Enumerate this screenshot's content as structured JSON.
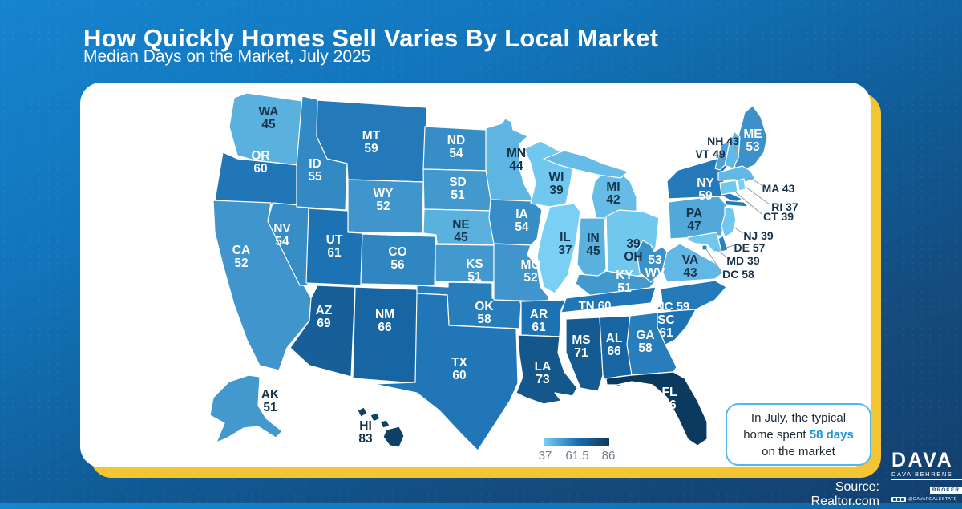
{
  "header": {
    "title": "How Quickly Homes Sell Varies By Local Market",
    "subtitle": "Median Days on the Market, July 2025"
  },
  "chart_data": {
    "type": "heatmap",
    "subtype": "us-choropleth-map",
    "title": "How Quickly Homes Sell Varies By Local Market",
    "subtitle": "Median Days on the Market, July 2025",
    "unit": "median days on market",
    "legend_position": "bottom-center",
    "color_domain": [
      37,
      61.5,
      86
    ],
    "states": [
      {
        "abbr": "WA",
        "value": 45
      },
      {
        "abbr": "OR",
        "value": 60
      },
      {
        "abbr": "CA",
        "value": 52
      },
      {
        "abbr": "NV",
        "value": 54
      },
      {
        "abbr": "ID",
        "value": 55
      },
      {
        "abbr": "MT",
        "value": 59
      },
      {
        "abbr": "WY",
        "value": 52
      },
      {
        "abbr": "UT",
        "value": 61
      },
      {
        "abbr": "AZ",
        "value": 69
      },
      {
        "abbr": "CO",
        "value": 56
      },
      {
        "abbr": "NM",
        "value": 66
      },
      {
        "abbr": "ND",
        "value": 54
      },
      {
        "abbr": "SD",
        "value": 51
      },
      {
        "abbr": "NE",
        "value": 45
      },
      {
        "abbr": "KS",
        "value": 51
      },
      {
        "abbr": "OK",
        "value": 58
      },
      {
        "abbr": "TX",
        "value": 60
      },
      {
        "abbr": "MN",
        "value": 44
      },
      {
        "abbr": "IA",
        "value": 54
      },
      {
        "abbr": "MO",
        "value": 52
      },
      {
        "abbr": "AR",
        "value": 61
      },
      {
        "abbr": "LA",
        "value": 73
      },
      {
        "abbr": "WI",
        "value": 39
      },
      {
        "abbr": "IL",
        "value": 37
      },
      {
        "abbr": "MS",
        "value": 71
      },
      {
        "abbr": "MI",
        "value": 42
      },
      {
        "abbr": "IN",
        "value": 45
      },
      {
        "abbr": "OH",
        "value": 39
      },
      {
        "abbr": "KY",
        "value": 51
      },
      {
        "abbr": "TN",
        "value": 60
      },
      {
        "abbr": "AL",
        "value": 66
      },
      {
        "abbr": "GA",
        "value": 58
      },
      {
        "abbr": "WV",
        "value": 53
      },
      {
        "abbr": "VA",
        "value": 43
      },
      {
        "abbr": "PA",
        "value": 47
      },
      {
        "abbr": "NY",
        "value": 59
      },
      {
        "abbr": "ME",
        "value": 53
      },
      {
        "abbr": "NH",
        "value": 43
      },
      {
        "abbr": "VT",
        "value": 49
      },
      {
        "abbr": "MA",
        "value": 43
      },
      {
        "abbr": "RI",
        "value": 37
      },
      {
        "abbr": "CT",
        "value": 39
      },
      {
        "abbr": "NJ",
        "value": 39
      },
      {
        "abbr": "DE",
        "value": 57
      },
      {
        "abbr": "MD",
        "value": 39
      },
      {
        "abbr": "DC",
        "value": 58
      },
      {
        "abbr": "NC",
        "value": 59
      },
      {
        "abbr": "SC",
        "value": 61
      },
      {
        "abbr": "FL",
        "value": 86
      },
      {
        "abbr": "AK",
        "value": 51
      },
      {
        "abbr": "HI",
        "value": 83
      }
    ],
    "legend": {
      "min": "37",
      "mid": "61.5",
      "max": "86"
    }
  },
  "colors": {
    "scale_min": "#79D0F4",
    "scale_mid": "#1A70B2",
    "scale_max": "#0C3A5E",
    "accent_yellow": "#F3C532",
    "callout_border": "#55B9E8",
    "callout_highlight": "#2196D6",
    "dark_label": "#16334A"
  },
  "callout": {
    "line1": "In July, the typical",
    "line2_prefix": "home spent ",
    "line2_highlight": "58 days",
    "line3": "on the market"
  },
  "footer": {
    "source": "Source: Realtor.com"
  },
  "logo": {
    "name": "DAVA",
    "person": "DAVA BEHRENS",
    "badge": "BROKER",
    "handle": "@DAVAREALESTATE"
  }
}
